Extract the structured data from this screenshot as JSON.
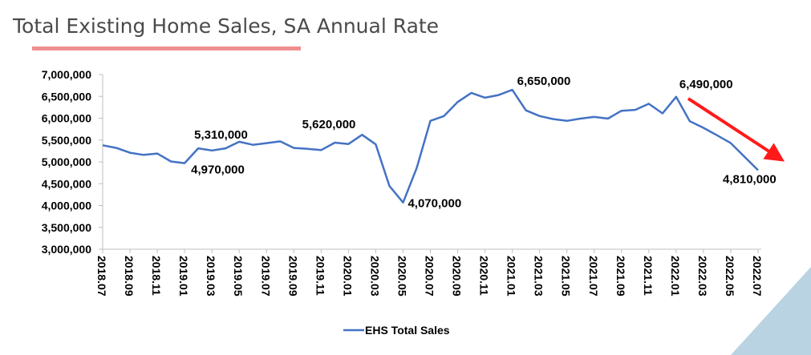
{
  "title": "Total Existing Home Sales, SA Annual Rate",
  "colors": {
    "line": "#4472c4",
    "arrow": "#ff1a1a",
    "underline": "#f08f8f",
    "corner": "#b9d3e2",
    "text": "#000000"
  },
  "chart_data": {
    "type": "line",
    "title": "Total Existing Home Sales, SA Annual Rate",
    "xlabel": "",
    "ylabel": "",
    "ylim": [
      3000000,
      7000000
    ],
    "yticks": [
      3000000,
      3500000,
      4000000,
      4500000,
      5000000,
      5500000,
      6000000,
      6500000,
      7000000
    ],
    "ytick_labels": [
      "3,000,000",
      "3,500,000",
      "4,000,000",
      "4,500,000",
      "5,000,000",
      "5,500,000",
      "6,000,000",
      "6,500,000",
      "7,000,000"
    ],
    "grid": false,
    "legend": "bottom",
    "x": [
      "2018.07",
      "2018.08",
      "2018.09",
      "2018.10",
      "2018.11",
      "2018.12",
      "2019.01",
      "2019.02",
      "2019.03",
      "2019.04",
      "2019.05",
      "2019.06",
      "2019.07",
      "2019.08",
      "2019.09",
      "2019.10",
      "2019.11",
      "2019.12",
      "2020.01",
      "2020.02",
      "2020.03",
      "2020.04",
      "2020.05",
      "2020.06",
      "2020.07",
      "2020.08",
      "2020.09",
      "2020.10",
      "2020.11",
      "2020.12",
      "2021.01",
      "2021.02",
      "2021.03",
      "2021.04",
      "2021.05",
      "2021.06",
      "2021.07",
      "2021.08",
      "2021.09",
      "2021.10",
      "2021.11",
      "2021.12",
      "2022.01",
      "2022.02",
      "2022.03",
      "2022.04",
      "2022.05",
      "2022.06",
      "2022.07"
    ],
    "tick_labels": [
      "2018.07",
      "2018.09",
      "2018.11",
      "2019.01",
      "2019.03",
      "2019.05",
      "2019.07",
      "2019.09",
      "2019.11",
      "2020.01",
      "2020.03",
      "2020.05",
      "2020.07",
      "2020.09",
      "2020.11",
      "2021.01",
      "2021.03",
      "2021.05",
      "2021.07",
      "2021.09",
      "2021.11",
      "2022.01",
      "2022.03",
      "2022.05",
      "2022.07"
    ],
    "series": [
      {
        "name": "EHS Total Sales",
        "values": [
          5380000,
          5320000,
          5210000,
          5160000,
          5190000,
          5010000,
          4970000,
          5310000,
          5260000,
          5310000,
          5460000,
          5390000,
          5430000,
          5470000,
          5320000,
          5300000,
          5270000,
          5440000,
          5410000,
          5620000,
          5400000,
          4450000,
          4070000,
          4860000,
          5940000,
          6050000,
          6370000,
          6580000,
          6470000,
          6530000,
          6650000,
          6180000,
          6050000,
          5980000,
          5940000,
          5990000,
          6030000,
          5990000,
          6170000,
          6190000,
          6330000,
          6110000,
          6490000,
          5930000,
          5780000,
          5610000,
          5430000,
          5120000,
          4810000
        ]
      }
    ],
    "annotations": [
      {
        "index": 6,
        "text": "4,970,000"
      },
      {
        "index": 7,
        "text": "5,310,000"
      },
      {
        "index": 19,
        "text": "5,620,000"
      },
      {
        "index": 22,
        "text": "4,070,000"
      },
      {
        "index": 30,
        "text": "6,650,000"
      },
      {
        "index": 42,
        "text": "6,490,000"
      },
      {
        "index": 48,
        "text": "4,810,000"
      }
    ]
  }
}
